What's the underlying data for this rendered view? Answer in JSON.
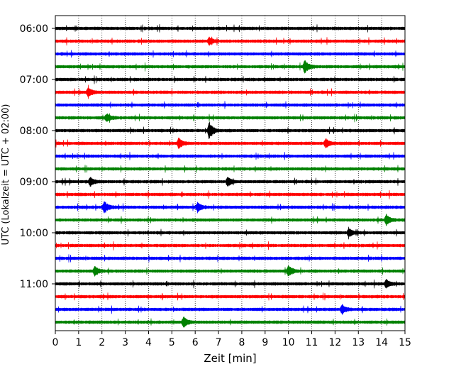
{
  "chart_data": {
    "type": "line",
    "title": "",
    "xlabel": "Zeit  [min]",
    "ylabel": "UTC (Lokalzeit = UTC + 02:00)",
    "xlim": [
      0,
      15
    ],
    "x_ticks": [
      "0",
      "1",
      "2",
      "3",
      "4",
      "5",
      "6",
      "7",
      "8",
      "9",
      "10",
      "11",
      "12",
      "13",
      "14",
      "15"
    ],
    "y_ticks": [
      "06:00",
      "07:00",
      "08:00",
      "09:00",
      "10:00",
      "11:00"
    ],
    "grid": "vertical dotted",
    "trace_interval_min": 15,
    "color_cycle": [
      "#000000",
      "#ff0000",
      "#0000ff",
      "#008000"
    ],
    "series": [
      {
        "start": "06:00",
        "color": "#000000"
      },
      {
        "start": "06:15",
        "color": "#ff0000"
      },
      {
        "start": "06:30",
        "color": "#0000ff"
      },
      {
        "start": "06:45",
        "color": "#008000"
      },
      {
        "start": "07:00",
        "color": "#000000"
      },
      {
        "start": "07:15",
        "color": "#ff0000"
      },
      {
        "start": "07:30",
        "color": "#0000ff"
      },
      {
        "start": "07:45",
        "color": "#008000"
      },
      {
        "start": "08:00",
        "color": "#000000"
      },
      {
        "start": "08:15",
        "color": "#ff0000"
      },
      {
        "start": "08:30",
        "color": "#0000ff"
      },
      {
        "start": "08:45",
        "color": "#008000"
      },
      {
        "start": "09:00",
        "color": "#000000"
      },
      {
        "start": "09:15",
        "color": "#ff0000"
      },
      {
        "start": "09:30",
        "color": "#0000ff"
      },
      {
        "start": "09:45",
        "color": "#008000"
      },
      {
        "start": "10:00",
        "color": "#000000"
      },
      {
        "start": "10:15",
        "color": "#ff0000"
      },
      {
        "start": "10:30",
        "color": "#0000ff"
      },
      {
        "start": "10:45",
        "color": "#008000"
      },
      {
        "start": "11:00",
        "color": "#000000"
      },
      {
        "start": "11:15",
        "color": "#ff0000"
      },
      {
        "start": "11:30",
        "color": "#0000ff"
      },
      {
        "start": "11:45",
        "color": "#008000"
      }
    ],
    "events": [
      {
        "trace": "06:15",
        "minute": 6.6,
        "amplitude": 0.3
      },
      {
        "trace": "06:45",
        "minute": 10.7,
        "amplitude": 0.55
      },
      {
        "trace": "07:15",
        "minute": 1.4,
        "amplitude": 0.4
      },
      {
        "trace": "07:45",
        "minute": 2.2,
        "amplitude": 0.35
      },
      {
        "trace": "08:00",
        "minute": 6.6,
        "amplitude": 0.75
      },
      {
        "trace": "08:15",
        "minute": 5.3,
        "amplitude": 0.45
      },
      {
        "trace": "08:15",
        "minute": 11.6,
        "amplitude": 0.35
      },
      {
        "trace": "09:00",
        "minute": 1.5,
        "amplitude": 0.35
      },
      {
        "trace": "09:00",
        "minute": 7.4,
        "amplitude": 0.4
      },
      {
        "trace": "09:30",
        "minute": 2.1,
        "amplitude": 0.5
      },
      {
        "trace": "09:30",
        "minute": 6.1,
        "amplitude": 0.4
      },
      {
        "trace": "09:45",
        "minute": 14.2,
        "amplitude": 0.45
      },
      {
        "trace": "10:00",
        "minute": 12.6,
        "amplitude": 0.35
      },
      {
        "trace": "10:45",
        "minute": 1.7,
        "amplitude": 0.4
      },
      {
        "trace": "10:45",
        "minute": 10.0,
        "amplitude": 0.55
      },
      {
        "trace": "11:00",
        "minute": 14.2,
        "amplitude": 0.35
      },
      {
        "trace": "11:30",
        "minute": 12.3,
        "amplitude": 0.4
      },
      {
        "trace": "11:45",
        "minute": 5.5,
        "amplitude": 0.45
      }
    ]
  }
}
